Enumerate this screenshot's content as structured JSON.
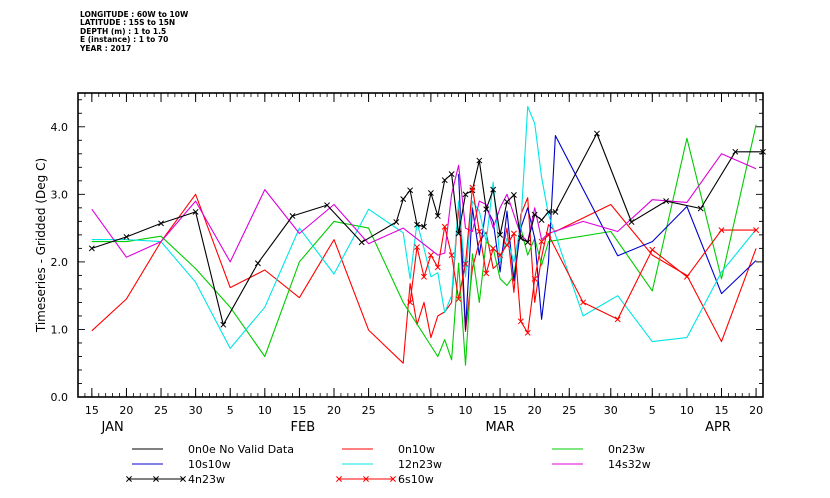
{
  "header_lines": [
    "LONGITUDE : 60W to 10W",
    "LATITUDE : 15S to 15N",
    "DEPTH (m) : 1 to 1.5",
    "E (instance) : 1 to 70",
    "YEAR : 2017"
  ],
  "chart_data": {
    "type": "line",
    "ylabel": "Timeseries - Gridded (Deg C)",
    "ylim": [
      0.0,
      4.5
    ],
    "yticks": [
      "0.0",
      "1.0",
      "2.0",
      "3.0",
      "4.0"
    ],
    "ytick_values": [
      0,
      1,
      2,
      3,
      4
    ],
    "xlim": [
      13,
      112
    ],
    "xtick_labels": [
      {
        "day": 15,
        "label": "15"
      },
      {
        "day": 20,
        "label": "20"
      },
      {
        "day": 25,
        "label": "25"
      },
      {
        "day": 30,
        "label": "30"
      },
      {
        "day": 35,
        "label": "5"
      },
      {
        "day": 40,
        "label": "10"
      },
      {
        "day": 45,
        "label": "15"
      },
      {
        "day": 50,
        "label": "20"
      },
      {
        "day": 55,
        "label": "25"
      },
      {
        "day": 64,
        "label": "5"
      },
      {
        "day": 69,
        "label": "10"
      },
      {
        "day": 74,
        "label": "15"
      },
      {
        "day": 79,
        "label": "20"
      },
      {
        "day": 84,
        "label": "25"
      },
      {
        "day": 90,
        "label": "30"
      },
      {
        "day": 96,
        "label": "5"
      },
      {
        "day": 101,
        "label": "10"
      },
      {
        "day": 106,
        "label": "15"
      },
      {
        "day": 111,
        "label": "20"
      }
    ],
    "months": [
      {
        "label": "JAN",
        "center": 18
      },
      {
        "label": "FEB",
        "center": 45.5
      },
      {
        "label": "MAR",
        "center": 74
      },
      {
        "label": "APR",
        "center": 105.5
      }
    ],
    "grid": false,
    "legend_position": "bottom",
    "series": [
      {
        "name": "0n0e No Valid Data",
        "color": "#000000",
        "marker": "none",
        "x": [],
        "y": []
      },
      {
        "name": "0n10w",
        "color": "#ff0000",
        "marker": "none",
        "x": [
          15,
          20,
          25,
          30,
          35,
          40,
          45,
          50,
          55,
          60,
          61,
          62,
          63,
          64,
          65,
          66,
          67,
          68,
          69,
          70,
          71,
          72,
          73,
          74,
          75,
          76,
          77,
          78,
          79,
          80,
          81,
          82,
          90,
          96,
          101,
          106,
          111
        ],
        "y": [
          0.98,
          1.45,
          2.3,
          3.0,
          1.62,
          1.88,
          1.47,
          2.33,
          0.99,
          0.5,
          1.68,
          1.07,
          1.4,
          0.88,
          1.2,
          1.26,
          1.4,
          2.85,
          0.97,
          1.9,
          2.3,
          2.44,
          1.9,
          2.0,
          2.5,
          1.55,
          2.7,
          2.95,
          1.4,
          2.07,
          2.55,
          2.45,
          2.85,
          2.1,
          1.8,
          0.82,
          2.2
        ]
      },
      {
        "name": "0n23w",
        "color": "#00cc00",
        "marker": "none",
        "x": [
          15,
          20,
          25,
          30,
          35,
          40,
          45,
          50,
          55,
          60,
          65,
          66,
          67,
          68,
          69,
          70,
          71,
          72,
          73,
          74,
          75,
          76,
          77,
          78,
          79,
          80,
          81,
          90,
          96,
          101,
          106,
          111
        ],
        "y": [
          2.3,
          2.3,
          2.38,
          1.9,
          1.33,
          0.6,
          2.0,
          2.6,
          2.5,
          1.4,
          0.6,
          0.85,
          0.55,
          1.98,
          0.47,
          2.12,
          1.4,
          2.3,
          2.2,
          1.75,
          1.65,
          1.8,
          2.5,
          2.1,
          2.35,
          1.95,
          2.3,
          2.45,
          1.57,
          3.83,
          1.75,
          4.03
        ]
      },
      {
        "name": "10s10w",
        "color": "#0000cc",
        "marker": "none",
        "x": [
          68,
          69,
          70,
          71,
          72,
          73,
          74,
          75,
          76,
          77,
          78,
          79,
          80,
          81,
          82,
          91,
          96,
          101,
          106,
          111
        ],
        "y": [
          3.3,
          1.0,
          2.8,
          2.1,
          2.8,
          2.6,
          1.85,
          2.75,
          1.72,
          2.5,
          2.8,
          2.35,
          1.15,
          2.0,
          3.87,
          2.09,
          2.3,
          2.82,
          1.53,
          2.02
        ]
      },
      {
        "name": "12n23w",
        "color": "#00e5e5",
        "marker": "none",
        "x": [
          15,
          20,
          25,
          30,
          35,
          40,
          45,
          50,
          55,
          60,
          61,
          62,
          63,
          64,
          65,
          66,
          67,
          68,
          69,
          70,
          71,
          72,
          73,
          74,
          75,
          76,
          77,
          78,
          79,
          80,
          81,
          86,
          91,
          96,
          101,
          106,
          111
        ],
        "y": [
          2.33,
          2.33,
          2.3,
          1.7,
          0.72,
          1.33,
          2.5,
          1.82,
          2.78,
          2.43,
          1.75,
          2.58,
          2.2,
          1.78,
          1.84,
          1.25,
          1.5,
          2.9,
          1.78,
          2.9,
          2.75,
          2.3,
          3.18,
          2.0,
          2.35,
          2.0,
          2.55,
          4.3,
          4.05,
          3.25,
          2.7,
          1.2,
          1.5,
          0.82,
          0.88,
          1.85,
          2.48
        ]
      },
      {
        "name": "14s32w",
        "color": "#dd00dd",
        "marker": "none",
        "x": [
          15,
          20,
          25,
          30,
          35,
          40,
          45,
          50,
          55,
          60,
          65,
          66,
          67,
          68,
          69,
          70,
          71,
          72,
          73,
          74,
          75,
          76,
          77,
          78,
          79,
          80,
          81,
          86,
          91,
          96,
          101,
          106,
          111
        ],
        "y": [
          2.78,
          2.07,
          2.3,
          2.9,
          2.0,
          3.07,
          2.42,
          2.85,
          2.27,
          2.5,
          2.1,
          2.13,
          3.0,
          3.43,
          2.5,
          2.45,
          2.9,
          2.85,
          2.5,
          2.8,
          3.0,
          2.7,
          2.4,
          2.3,
          2.8,
          2.33,
          2.42,
          2.6,
          2.45,
          2.92,
          2.88,
          3.6,
          3.38
        ]
      },
      {
        "name": "4n23w",
        "color": "#000000",
        "marker": "x",
        "x": [
          15,
          20,
          25,
          30,
          34,
          39,
          44,
          49,
          54,
          59,
          60,
          61,
          62,
          63,
          64,
          65,
          66,
          67,
          68,
          69,
          70,
          71,
          72,
          73,
          74,
          75,
          76,
          77,
          78,
          79,
          80,
          81,
          82,
          88,
          93,
          98,
          103,
          108,
          112
        ],
        "y": [
          2.2,
          2.37,
          2.57,
          2.74,
          1.07,
          1.98,
          2.68,
          2.84,
          2.29,
          2.59,
          2.93,
          3.06,
          2.55,
          2.52,
          3.02,
          2.68,
          3.21,
          3.3,
          2.42,
          3.0,
          3.06,
          3.5,
          2.78,
          3.07,
          2.4,
          2.89,
          2.99,
          2.35,
          2.29,
          2.7,
          2.62,
          2.74,
          2.74,
          3.9,
          2.59,
          2.9,
          2.79,
          3.63,
          3.63
        ]
      },
      {
        "name": "6s10w",
        "color": "#ff0000",
        "marker": "x",
        "x": [
          61,
          62,
          63,
          64,
          65,
          66,
          67,
          68,
          69,
          70,
          71,
          72,
          73,
          74,
          75,
          76,
          77,
          78,
          79,
          80,
          81,
          86,
          91,
          96,
          101,
          106,
          111
        ],
        "y": [
          1.4,
          2.22,
          1.78,
          2.1,
          1.92,
          2.52,
          2.1,
          1.45,
          1.97,
          3.1,
          2.45,
          1.83,
          2.2,
          2.1,
          2.25,
          2.42,
          1.12,
          0.95,
          1.75,
          2.3,
          2.4,
          1.4,
          1.15,
          2.18,
          1.78,
          2.47,
          2.47
        ]
      }
    ]
  }
}
